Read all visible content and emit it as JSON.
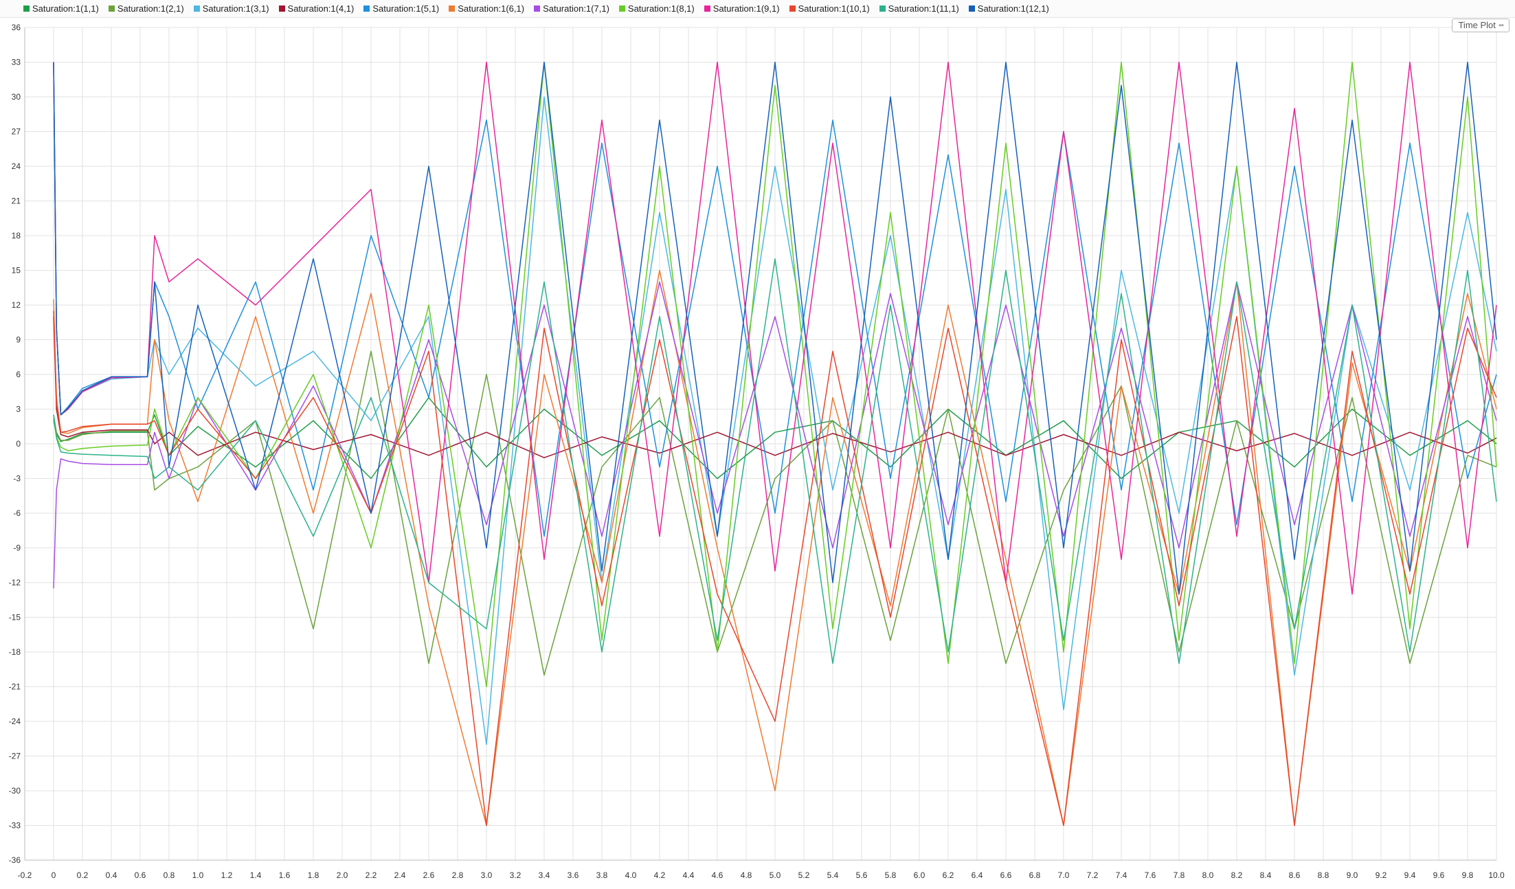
{
  "window": {
    "plot_label": "Time Plot"
  },
  "chart_data": {
    "type": "line",
    "title": "",
    "xlabel": "",
    "ylabel": "",
    "xlim": [
      -0.2,
      10.0
    ],
    "ylim": [
      -36,
      36
    ],
    "x_ticks": [
      -0.2,
      0,
      0.2,
      0.4,
      0.6,
      0.8,
      1.0,
      1.2,
      1.4,
      1.6,
      1.8,
      2.0,
      2.2,
      2.4,
      2.6,
      2.8,
      3.0,
      3.2,
      3.4,
      3.6,
      3.8,
      4.0,
      4.2,
      4.4,
      4.6,
      4.8,
      5.0,
      5.2,
      5.4,
      5.6,
      5.8,
      6.0,
      6.2,
      6.4,
      6.6,
      6.8,
      7.0,
      7.2,
      7.4,
      7.6,
      7.8,
      8.0,
      8.2,
      8.4,
      8.6,
      8.8,
      9.0,
      9.2,
      9.4,
      9.6,
      9.8,
      10.0
    ],
    "x_tick_labels": [
      "-0.2",
      "0",
      "0.2",
      "0.4",
      "0.6",
      "0.8",
      "1.0",
      "1.2",
      "1.4",
      "1.6",
      "1.8",
      "2.0",
      "2.2",
      "2.4",
      "2.6",
      "2.8",
      "3.0",
      "3.2",
      "3.4",
      "3.6",
      "3.8",
      "4.0",
      "4.2",
      "4.4",
      "4.6",
      "4.8",
      "5.0",
      "5.2",
      "5.4",
      "5.6",
      "5.8",
      "6.0",
      "6.2",
      "6.4",
      "6.6",
      "6.8",
      "7.0",
      "7.2",
      "7.4",
      "7.6",
      "7.8",
      "8.0",
      "8.2",
      "8.4",
      "8.6",
      "8.8",
      "9.0",
      "9.2",
      "9.4",
      "9.6",
      "9.8",
      "10.0"
    ],
    "y_ticks": [
      36,
      33,
      30,
      27,
      24,
      21,
      18,
      15,
      12,
      9,
      6,
      3,
      0,
      -3,
      -6,
      -9,
      -12,
      -15,
      -18,
      -21,
      -24,
      -27,
      -30,
      -33,
      -36
    ],
    "y_tick_labels": [
      "36",
      "33",
      "30",
      "27",
      "24",
      "21",
      "18",
      "15",
      "12",
      "9",
      "6",
      "3",
      "0",
      "-3",
      "-6",
      "-9",
      "-12",
      "-15",
      "-18",
      "-21",
      "-24",
      "-27",
      "-30",
      "-33",
      "-36"
    ],
    "grid": true,
    "legend_position": "top-left",
    "series": [
      {
        "name": "Saturation:1(1,1)",
        "color": "#1f9e49",
        "x": [
          0,
          0.02,
          0.05,
          0.1,
          0.2,
          0.4,
          0.65,
          0.7,
          0.8,
          1.0,
          1.4,
          1.8,
          2.2,
          2.6,
          3.0,
          3.4,
          3.8,
          4.2,
          4.6,
          5.0,
          5.4,
          5.8,
          6.2,
          6.6,
          7.0,
          7.4,
          7.8,
          8.2,
          8.6,
          9.0,
          9.4,
          9.8,
          10.0
        ],
        "y": [
          2,
          0.8,
          0.2,
          0.4,
          0.9,
          1.0,
          1.0,
          2.5,
          -1,
          1.5,
          -2,
          2,
          -3,
          4,
          -2,
          3,
          -1,
          2,
          -3,
          1,
          2,
          -2,
          3,
          -1,
          2,
          -3,
          1,
          2,
          -2,
          3,
          -1,
          2,
          0
        ]
      },
      {
        "name": "Saturation:1(2,1)",
        "color": "#6aa23c",
        "x": [
          0,
          0.02,
          0.05,
          0.1,
          0.2,
          0.4,
          0.65,
          0.7,
          0.8,
          1.0,
          1.4,
          1.8,
          2.2,
          2.6,
          3.0,
          3.4,
          3.8,
          4.2,
          4.6,
          5.0,
          5.4,
          5.8,
          6.2,
          6.6,
          7.0,
          7.4,
          7.8,
          8.2,
          8.6,
          9.0,
          9.4,
          9.8,
          10.0
        ],
        "y": [
          2.5,
          1,
          0.3,
          0.3,
          0.8,
          1.1,
          1.1,
          -4,
          -3,
          -2,
          2,
          -16,
          8,
          -19,
          6,
          -20,
          -2,
          4,
          -18,
          -3,
          2,
          -17,
          3,
          -19,
          -4,
          5,
          -18,
          2,
          -16,
          4,
          -19,
          -1,
          -2
        ]
      },
      {
        "name": "Saturation:1(3,1)",
        "color": "#4bb8e3",
        "x": [
          0,
          0.02,
          0.05,
          0.1,
          0.2,
          0.4,
          0.65,
          0.7,
          0.8,
          1.0,
          1.4,
          1.8,
          2.2,
          2.6,
          3.0,
          3.4,
          3.8,
          4.2,
          4.6,
          5.0,
          5.4,
          5.8,
          6.2,
          6.6,
          7.0,
          7.4,
          7.8,
          8.2,
          8.6,
          9.0,
          9.4,
          9.8,
          10.0
        ],
        "y": [
          33,
          10,
          2.5,
          3.0,
          4.5,
          5.6,
          5.8,
          9,
          6,
          10,
          5,
          8,
          2,
          11,
          -26,
          30,
          -12,
          20,
          -8,
          24,
          -4,
          18,
          -10,
          22,
          -23,
          15,
          -6,
          24,
          -20,
          12,
          -4,
          20,
          8
        ]
      },
      {
        "name": "Saturation:1(4,1)",
        "color": "#a2142f",
        "x": [
          0,
          0.02,
          0.05,
          0.1,
          0.2,
          0.4,
          0.65,
          0.7,
          0.8,
          1.0,
          1.4,
          1.8,
          2.2,
          2.6,
          3.0,
          3.4,
          3.8,
          4.2,
          4.6,
          5.0,
          5.4,
          5.8,
          6.2,
          6.6,
          7.0,
          7.4,
          7.8,
          8.2,
          8.6,
          9.0,
          9.4,
          9.8,
          10.0
        ],
        "y": [
          11,
          3,
          0.8,
          0.6,
          1.0,
          1.2,
          1.2,
          0,
          1,
          -1,
          1,
          -0.5,
          0.8,
          -1,
          1,
          -1.2,
          0.6,
          -0.8,
          1,
          -1,
          0.9,
          -0.7,
          1,
          -1,
          0.8,
          -1,
          1,
          -0.6,
          0.9,
          -1,
          1,
          -0.8,
          0.5
        ]
      },
      {
        "name": "Saturation:1(5,1)",
        "color": "#1e90dc",
        "x": [
          0,
          0.02,
          0.05,
          0.1,
          0.2,
          0.4,
          0.65,
          0.7,
          0.8,
          1.0,
          1.4,
          1.8,
          2.2,
          2.6,
          3.0,
          3.4,
          3.8,
          4.2,
          4.6,
          5.0,
          5.4,
          5.8,
          6.2,
          6.6,
          7.0,
          7.4,
          7.8,
          8.2,
          8.6,
          9.0,
          9.4,
          9.8,
          10.0
        ],
        "y": [
          33,
          10,
          2.5,
          3.2,
          4.8,
          5.8,
          5.8,
          14,
          11,
          3,
          14,
          -4,
          18,
          4,
          28,
          -8,
          26,
          -2,
          24,
          -6,
          28,
          -3,
          25,
          -5,
          27,
          -4,
          26,
          -7,
          24,
          -5,
          26,
          -3,
          6
        ]
      },
      {
        "name": "Saturation:1(6,1)",
        "color": "#ef7a31",
        "x": [
          0,
          0.02,
          0.05,
          0.1,
          0.2,
          0.4,
          0.65,
          0.7,
          0.8,
          1.0,
          1.4,
          1.8,
          2.2,
          2.6,
          3.0,
          3.4,
          3.8,
          4.2,
          4.6,
          5.0,
          5.4,
          5.8,
          6.2,
          6.6,
          7.0,
          7.4,
          7.8,
          8.2,
          8.6,
          9.0,
          9.4,
          9.8,
          10.0
        ],
        "y": [
          12.5,
          4,
          1,
          0.9,
          1.4,
          1.7,
          1.7,
          9,
          2,
          -5,
          11,
          -6,
          13,
          -14,
          -33,
          6,
          -12,
          15,
          -9,
          -30,
          4,
          -14,
          12,
          -10,
          -33,
          5,
          -13,
          14,
          -33,
          7,
          -11,
          13,
          3
        ]
      },
      {
        "name": "Saturation:1(7,1)",
        "color": "#a64de6",
        "x": [
          0,
          0.02,
          0.05,
          0.1,
          0.2,
          0.4,
          0.65,
          0.7,
          0.8,
          1.0,
          1.4,
          1.8,
          2.2,
          2.6,
          3.0,
          3.4,
          3.8,
          4.2,
          4.6,
          5.0,
          5.4,
          5.8,
          6.2,
          6.6,
          7.0,
          7.4,
          7.8,
          8.2,
          8.6,
          9.0,
          9.4,
          9.8,
          10.0
        ],
        "y": [
          -12.5,
          -4,
          -1.3,
          -1.5,
          -1.7,
          -1.8,
          -1.8,
          1,
          -3,
          4,
          -4,
          5,
          -6,
          9,
          -7,
          12,
          -8,
          14,
          -6,
          11,
          -9,
          13,
          -7,
          12,
          -8,
          10,
          -9,
          14,
          -7,
          12,
          -8,
          11,
          2
        ]
      },
      {
        "name": "Saturation:1(8,1)",
        "color": "#66cc22",
        "x": [
          0,
          0.02,
          0.05,
          0.1,
          0.2,
          0.4,
          0.65,
          0.7,
          0.8,
          1.0,
          1.4,
          1.8,
          2.2,
          2.6,
          3.0,
          3.4,
          3.8,
          4.2,
          4.6,
          5.0,
          5.4,
          5.8,
          6.2,
          6.6,
          7.0,
          7.4,
          7.8,
          8.2,
          8.6,
          9.0,
          9.4,
          9.8,
          10.0
        ],
        "y": [
          2.2,
          0.6,
          -0.3,
          -0.6,
          -0.4,
          -0.2,
          -0.1,
          3,
          -1,
          4,
          -3,
          6,
          -9,
          12,
          -21,
          33,
          -17,
          24,
          -18,
          31,
          -16,
          20,
          -19,
          26,
          -18,
          33,
          -17,
          24,
          -19,
          33,
          -16,
          30,
          -2
        ]
      },
      {
        "name": "Saturation:1(9,1)",
        "color": "#e8249a",
        "x": [
          0,
          0.02,
          0.05,
          0.1,
          0.2,
          0.4,
          0.65,
          0.7,
          0.8,
          1.0,
          1.4,
          1.8,
          2.2,
          2.6,
          3.0,
          3.4,
          3.8,
          4.2,
          4.6,
          5.0,
          5.4,
          5.8,
          6.2,
          6.6,
          7.0,
          7.4,
          7.8,
          8.2,
          8.6,
          9.0,
          9.4,
          9.8,
          10.0
        ],
        "y": [
          33,
          10,
          2.5,
          3.0,
          4.5,
          5.7,
          5.8,
          18,
          14,
          16,
          12,
          17,
          22,
          -12,
          33,
          -10,
          28,
          -8,
          33,
          -11,
          26,
          -9,
          33,
          -12,
          27,
          -10,
          33,
          -8,
          29,
          -13,
          33,
          -9,
          12
        ]
      },
      {
        "name": "Saturation:1(10,1)",
        "color": "#e8452a",
        "x": [
          0,
          0.02,
          0.05,
          0.1,
          0.2,
          0.4,
          0.65,
          0.7,
          0.8,
          1.0,
          1.4,
          1.8,
          2.2,
          2.6,
          3.0,
          3.4,
          3.8,
          4.2,
          4.6,
          5.0,
          5.4,
          5.8,
          6.2,
          6.6,
          7.0,
          7.4,
          7.8,
          8.2,
          8.6,
          9.0,
          9.4,
          9.8,
          10.0
        ],
        "y": [
          11.5,
          3.5,
          1,
          1.1,
          1.5,
          1.7,
          1.7,
          2,
          -1,
          3,
          -3,
          4,
          -6,
          8,
          -33,
          10,
          -14,
          9,
          -13,
          -24,
          8,
          -15,
          10,
          -12,
          -33,
          9,
          -14,
          11,
          -33,
          8,
          -13,
          10,
          4
        ]
      },
      {
        "name": "Saturation:1(11,1)",
        "color": "#2bb28a",
        "x": [
          0,
          0.02,
          0.05,
          0.1,
          0.2,
          0.4,
          0.65,
          0.7,
          0.8,
          1.0,
          1.4,
          1.8,
          2.2,
          2.6,
          3.0,
          3.4,
          3.8,
          4.2,
          4.6,
          5.0,
          5.4,
          5.8,
          6.2,
          6.6,
          7.0,
          7.4,
          7.8,
          8.2,
          8.6,
          9.0,
          9.4,
          9.8,
          10.0
        ],
        "y": [
          2.5,
          0.5,
          -0.7,
          -0.8,
          -0.9,
          -1.0,
          -1.1,
          -3,
          -2,
          -4,
          2,
          -8,
          4,
          -12,
          -16,
          14,
          -18,
          11,
          -17,
          16,
          -19,
          12,
          -18,
          15,
          -17,
          13,
          -19,
          14,
          -16,
          12,
          -18,
          15,
          -5
        ]
      },
      {
        "name": "Saturation:1(12,1)",
        "color": "#1560bd",
        "x": [
          0,
          0.02,
          0.05,
          0.1,
          0.2,
          0.4,
          0.65,
          0.7,
          0.8,
          1.0,
          1.4,
          1.8,
          2.2,
          2.6,
          3.0,
          3.4,
          3.8,
          4.2,
          4.6,
          5.0,
          5.4,
          5.8,
          6.2,
          6.6,
          7.0,
          7.4,
          7.8,
          8.2,
          8.6,
          9.0,
          9.4,
          9.8,
          10.0
        ],
        "y": [
          33,
          10,
          2.5,
          3.1,
          4.6,
          5.8,
          5.8,
          14,
          -2,
          12,
          -4,
          16,
          -6,
          24,
          -9,
          33,
          -11,
          28,
          -8,
          33,
          -12,
          30,
          -10,
          33,
          -9,
          31,
          -13,
          33,
          -10,
          28,
          -11,
          33,
          9
        ]
      }
    ]
  }
}
